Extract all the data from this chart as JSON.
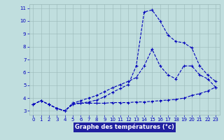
{
  "xlabel": "Graphe des températures (°c)",
  "x": [
    0,
    1,
    2,
    3,
    4,
    5,
    6,
    7,
    8,
    9,
    10,
    11,
    12,
    13,
    14,
    15,
    16,
    17,
    18,
    19,
    20,
    21,
    22,
    23
  ],
  "line1": [
    3.5,
    3.8,
    3.5,
    3.2,
    3.0,
    3.5,
    3.6,
    3.6,
    3.6,
    3.6,
    3.65,
    3.65,
    3.65,
    3.7,
    3.7,
    3.75,
    3.8,
    3.85,
    3.9,
    4.0,
    4.2,
    4.35,
    4.55,
    4.85
  ],
  "line2": [
    3.5,
    3.8,
    3.5,
    3.2,
    3.0,
    3.6,
    3.8,
    4.0,
    4.2,
    4.5,
    4.8,
    5.05,
    5.3,
    5.6,
    6.5,
    7.8,
    6.5,
    5.8,
    5.5,
    6.5,
    6.5,
    5.8,
    5.5,
    4.85
  ],
  "line3": [
    3.5,
    3.8,
    3.5,
    3.2,
    3.0,
    3.6,
    3.6,
    3.7,
    3.85,
    4.1,
    4.45,
    4.75,
    5.05,
    6.5,
    10.7,
    10.85,
    10.0,
    8.9,
    8.4,
    8.3,
    7.9,
    6.5,
    5.8,
    5.3
  ],
  "ylim": [
    2.7,
    11.3
  ],
  "xlim": [
    -0.5,
    23.5
  ],
  "yticks": [
    3,
    4,
    5,
    6,
    7,
    8,
    9,
    10,
    11
  ],
  "xticks": [
    0,
    1,
    2,
    3,
    4,
    5,
    6,
    7,
    8,
    9,
    10,
    11,
    12,
    13,
    14,
    15,
    16,
    17,
    18,
    19,
    20,
    21,
    22,
    23
  ],
  "line_color": "#0000bb",
  "bg_color": "#c0dede",
  "grid_color": "#9ab8b8",
  "axis_label_bg": "#2020a0",
  "marker": "+",
  "linewidth": 0.8,
  "markersize": 3.5,
  "markeredgewidth": 0.8,
  "tick_fontsize": 5,
  "xlabel_fontsize": 6.0
}
